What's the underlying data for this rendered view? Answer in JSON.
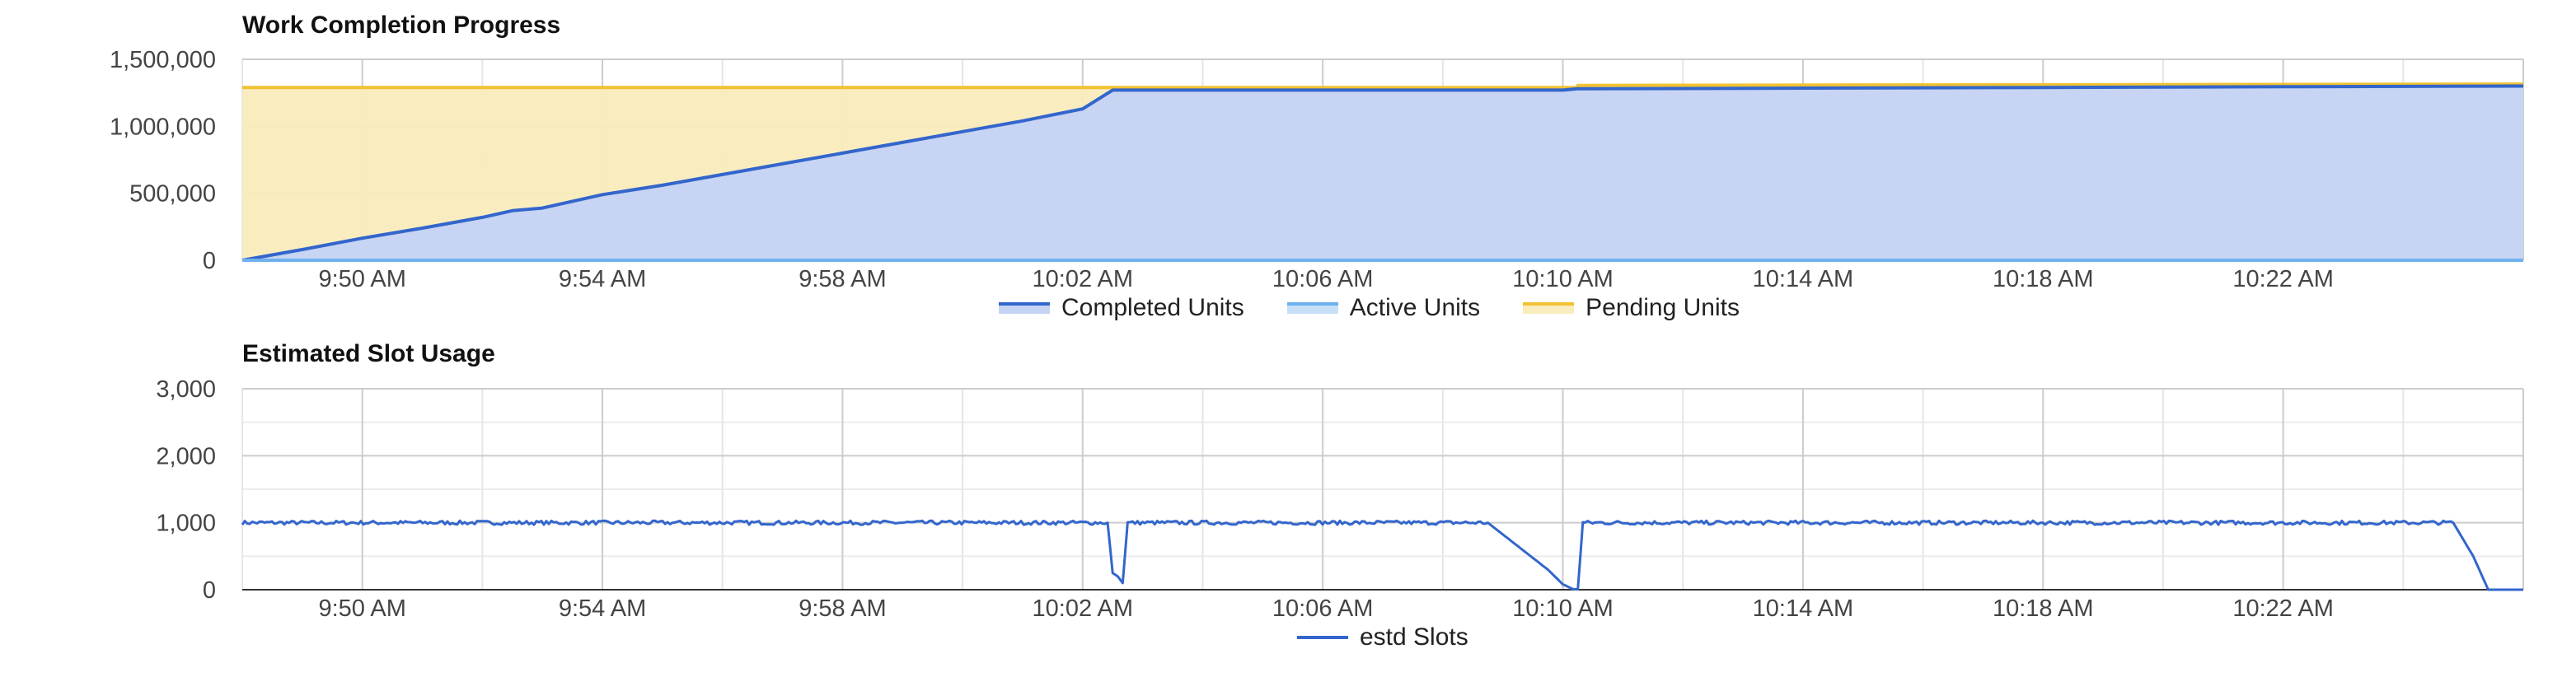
{
  "chart_data": [
    {
      "type": "area",
      "title": "Work Completion Progress",
      "x_ticks": [
        "9:50 AM",
        "9:54 AM",
        "9:58 AM",
        "10:02 AM",
        "10:06 AM",
        "10:10 AM",
        "10:14 AM",
        "10:18 AM",
        "10:22 AM"
      ],
      "y_ticks": [
        "0",
        "500,000",
        "1,000,000",
        "1,500,000"
      ],
      "ylim": [
        0,
        1500000
      ],
      "xlim": [
        "09:48",
        "10:26"
      ],
      "grid": true,
      "legend_position": "bottom",
      "series": [
        {
          "name": "Completed Units",
          "color": "#3366cc",
          "fill": "#c5d3f5",
          "x": [
            "09:48",
            "09:49",
            "09:50",
            "09:51",
            "09:52",
            "09:52:30",
            "09:53",
            "09:54",
            "09:55",
            "09:56",
            "09:57",
            "09:58",
            "09:59",
            "10:00",
            "10:01",
            "10:02",
            "10:02:30",
            "10:04",
            "10:06",
            "10:08",
            "10:10",
            "10:10:15",
            "10:14",
            "10:18",
            "10:22",
            "10:26"
          ],
          "values": [
            0,
            80000,
            165000,
            240000,
            320000,
            370000,
            390000,
            490000,
            560000,
            640000,
            720000,
            800000,
            880000,
            960000,
            1040000,
            1130000,
            1270000,
            1270000,
            1270000,
            1270000,
            1270000,
            1280000,
            1285000,
            1290000,
            1295000,
            1300000
          ]
        },
        {
          "name": "Active Units",
          "color": "#6fb1ef",
          "fill": "#c7e0f7",
          "x": [
            "09:48",
            "10:26"
          ],
          "values": [
            0,
            0
          ]
        },
        {
          "name": "Pending Units",
          "color": "#f1c232",
          "fill": "#f9ecbd",
          "x": [
            "09:48",
            "10:10:15",
            "10:10:15",
            "10:26"
          ],
          "values": [
            1290000,
            1290000,
            1305000,
            1315000
          ]
        }
      ]
    },
    {
      "type": "line",
      "title": "Estimated Slot Usage",
      "x_ticks": [
        "9:50 AM",
        "9:54 AM",
        "9:58 AM",
        "10:02 AM",
        "10:06 AM",
        "10:10 AM",
        "10:14 AM",
        "10:18 AM",
        "10:22 AM"
      ],
      "y_ticks": [
        "0",
        "1,000",
        "2,000",
        "3,000"
      ],
      "ylim": [
        0,
        3000
      ],
      "xlim": [
        "09:48",
        "10:26"
      ],
      "grid": true,
      "legend_position": "bottom",
      "series": [
        {
          "name": "estd Slots",
          "color": "#3366cc",
          "x": [
            "09:48",
            "10:02:25",
            "10:02:30",
            "10:02:35",
            "10:02:40",
            "10:02:45",
            "10:08:45",
            "10:09:15",
            "10:09:45",
            "10:10:00",
            "10:10:10",
            "10:10:15",
            "10:10:20",
            "10:24:50",
            "10:25:10",
            "10:25:25",
            "10:26"
          ],
          "values": [
            1000,
            1000,
            250,
            200,
            100,
            1000,
            1000,
            650,
            300,
            80,
            10,
            5,
            1000,
            1000,
            500,
            0,
            0
          ],
          "noise": 30
        }
      ]
    }
  ]
}
